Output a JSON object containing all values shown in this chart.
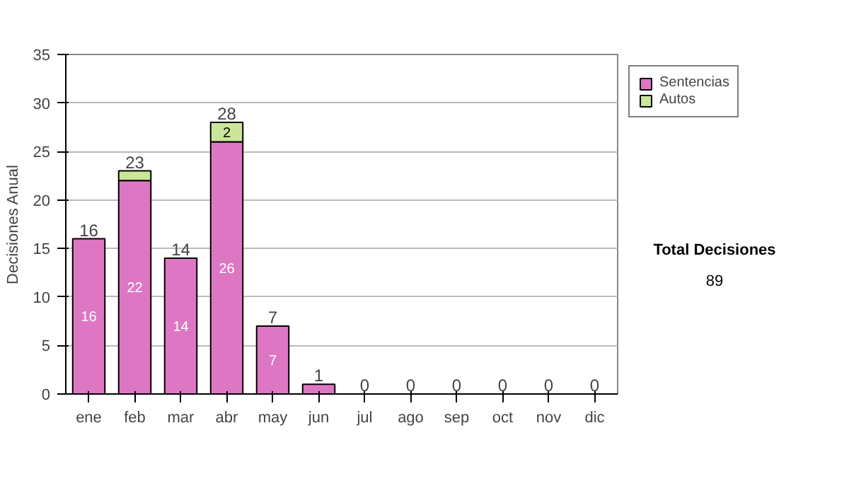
{
  "chart_data": {
    "type": "bar",
    "stacked": true,
    "ylabel": "Decisiones Anual",
    "categories": [
      "ene",
      "feb",
      "mar",
      "abr",
      "may",
      "jun",
      "jul",
      "ago",
      "sep",
      "oct",
      "nov",
      "dic"
    ],
    "series": [
      {
        "name": "Sentencias",
        "color": "#dd77c4",
        "values": [
          16,
          22,
          14,
          26,
          7,
          1,
          0,
          0,
          0,
          0,
          0,
          0
        ],
        "value_labels": [
          "16",
          "22",
          "14",
          "26",
          "7",
          null,
          null,
          null,
          null,
          null,
          null,
          null
        ]
      },
      {
        "name": "Autos",
        "color": "#cce699",
        "values": [
          0,
          1,
          0,
          2,
          0,
          0,
          0,
          0,
          0,
          0,
          0,
          0
        ],
        "value_labels": [
          null,
          null,
          null,
          "2",
          null,
          null,
          null,
          null,
          null,
          null,
          null,
          null
        ]
      }
    ],
    "totals": [
      "16",
      "23",
      "14",
      "28",
      "7",
      "1",
      "0",
      "0",
      "0",
      "0",
      "0",
      "0"
    ],
    "ylim": [
      0,
      35
    ],
    "yticks": [
      0,
      5,
      10,
      15,
      20,
      25,
      30,
      35
    ],
    "grid": "y",
    "legend": "right",
    "annotations": [
      "Total Decisiones",
      "89"
    ]
  }
}
